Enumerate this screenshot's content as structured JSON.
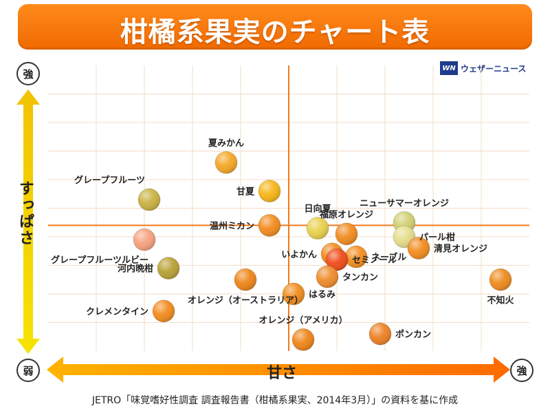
{
  "header": {
    "title": "柑橘系果実のチャート表"
  },
  "brand": {
    "logo": "WN",
    "name": "ウェザーニュース"
  },
  "axes": {
    "y_label": "すっぱさ",
    "x_label": "甘さ",
    "y_high": "強",
    "y_low": "弱",
    "x_high": "強"
  },
  "footer": {
    "source": "JETRO「味覚嗜好性調査 調査報告書（柑橘系果実、2014年3月）」の資料を基に作成"
  },
  "chart_data": {
    "type": "scatter",
    "title": "柑橘系果実のチャート表",
    "xlabel": "甘さ",
    "ylabel": "すっぱさ",
    "xlim": [
      0,
      10
    ],
    "ylim": [
      0,
      10
    ],
    "grid": true,
    "quadrant_lines": {
      "x": 5.0,
      "y": 4.4
    },
    "points": [
      {
        "name": "夏みかん",
        "x": 3.7,
        "y": 6.6,
        "color": "#f5a623",
        "label_pos": "above"
      },
      {
        "name": "グレープフルーツ",
        "x": 2.1,
        "y": 5.3,
        "color": "#c9b13f",
        "label_pos": "above-left"
      },
      {
        "name": "甘夏",
        "x": 4.6,
        "y": 5.6,
        "color": "#f7b515",
        "label_pos": "left"
      },
      {
        "name": "温州ミカン",
        "x": 4.6,
        "y": 4.4,
        "color": "#f28a1b",
        "label_pos": "left"
      },
      {
        "name": "グレープフルーツルビー",
        "x": 2.0,
        "y": 3.9,
        "color": "#f6a07c",
        "label_pos": "below-left"
      },
      {
        "name": "河内晩柑",
        "x": 2.5,
        "y": 2.9,
        "color": "#b8a034",
        "label_pos": "left"
      },
      {
        "name": "クレメンタイン",
        "x": 2.4,
        "y": 1.4,
        "color": "#f28a1b",
        "label_pos": "left"
      },
      {
        "name": "オレンジ（オーストラリア）",
        "x": 4.1,
        "y": 2.5,
        "color": "#ee8417",
        "label_pos": "below"
      },
      {
        "name": "福原オレンジ",
        "x": 6.2,
        "y": 4.1,
        "color": "#ef8a1c",
        "label_pos": "above"
      },
      {
        "name": "日向夏",
        "x": 5.6,
        "y": 4.3,
        "color": "#e8d04a",
        "label_pos": "above"
      },
      {
        "name": "いよかん",
        "x": 5.9,
        "y": 3.4,
        "color": "#f08a1c",
        "label_pos": "left"
      },
      {
        "name": "ネーブル",
        "x": 6.4,
        "y": 3.3,
        "color": "#f48d1e",
        "label_pos": "right"
      },
      {
        "name": "セミノール",
        "x": 6.0,
        "y": 3.2,
        "color": "#ef4a17",
        "label_pos": "right"
      },
      {
        "name": "タンカン",
        "x": 5.8,
        "y": 2.6,
        "color": "#ef8a2a",
        "label_pos": "right"
      },
      {
        "name": "はるみ",
        "x": 5.1,
        "y": 2.0,
        "color": "#f08a1c",
        "label_pos": "right"
      },
      {
        "name": "オレンジ（アメリカ）",
        "x": 5.3,
        "y": 0.4,
        "color": "#ee8417",
        "label_pos": "above"
      },
      {
        "name": "ポンカン",
        "x": 6.9,
        "y": 0.6,
        "color": "#ee7f22",
        "label_pos": "right"
      },
      {
        "name": "ニューサマーオレンジ",
        "x": 7.4,
        "y": 4.5,
        "color": "#cfd070",
        "label_pos": "above"
      },
      {
        "name": "パール柑",
        "x": 7.4,
        "y": 4.0,
        "color": "#e4dd8a",
        "label_pos": "right"
      },
      {
        "name": "清見オレンジ",
        "x": 7.7,
        "y": 3.6,
        "color": "#f28a1b",
        "label_pos": "right"
      },
      {
        "name": "不知火",
        "x": 9.4,
        "y": 2.5,
        "color": "#ee8a1c",
        "label_pos": "below"
      }
    ]
  }
}
